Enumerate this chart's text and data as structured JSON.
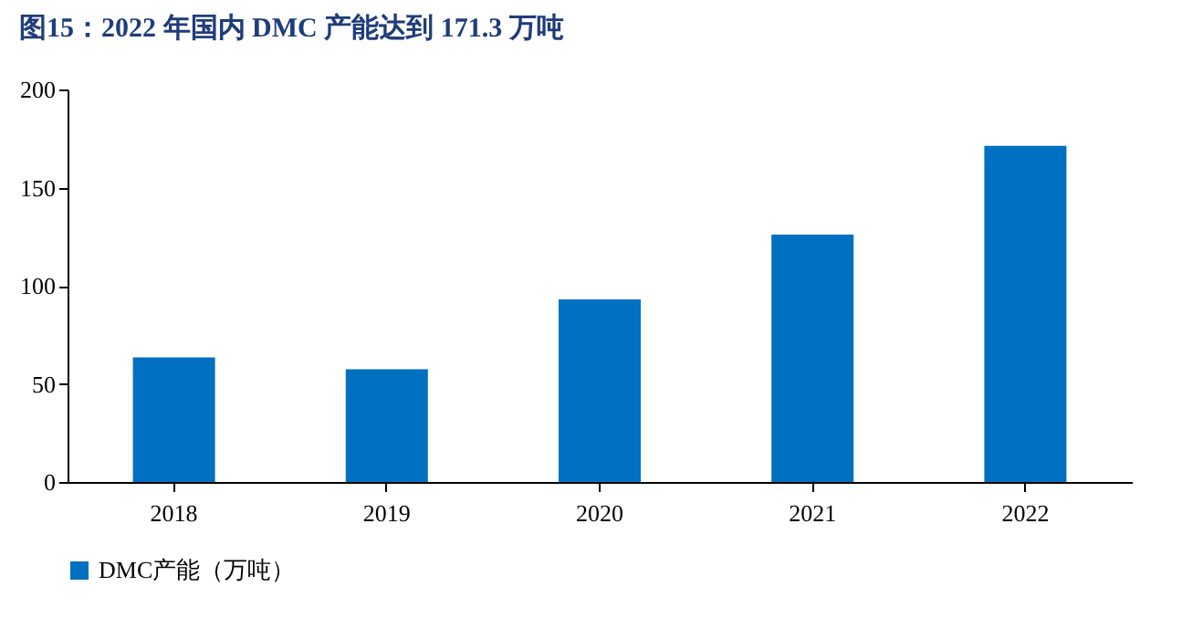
{
  "chart_data": {
    "type": "bar",
    "title": "图15：2022 年国内 DMC 产能达到 171.3 万吨",
    "categories": [
      "2018",
      "2019",
      "2020",
      "2021",
      "2022"
    ],
    "series": [
      {
        "name": "DMC产能（万吨）",
        "color": "#0070c0",
        "values": [
          63.5,
          57.5,
          93,
          126,
          171.3
        ]
      }
    ],
    "ylim": [
      0,
      200
    ],
    "yticks": [
      0,
      50,
      100,
      150,
      200
    ],
    "grid": false,
    "legend": "bottom"
  }
}
